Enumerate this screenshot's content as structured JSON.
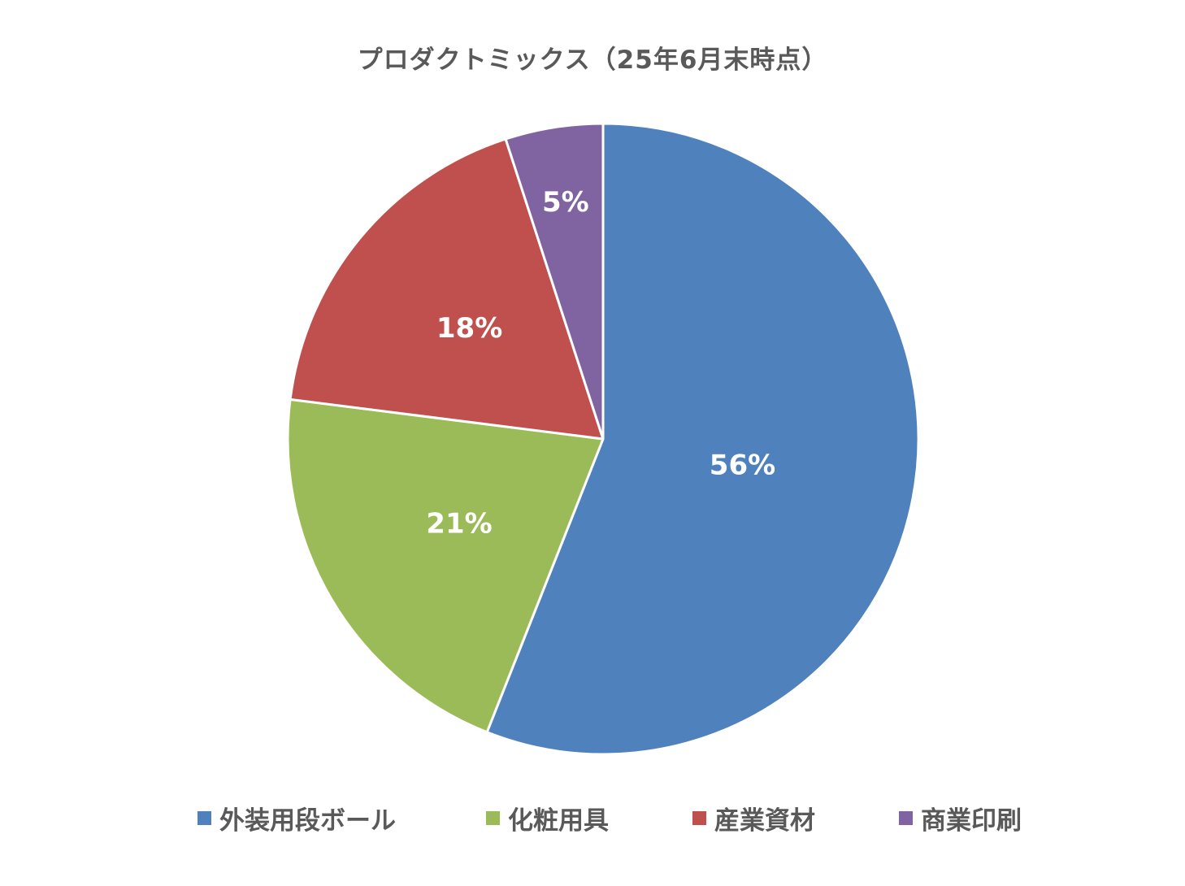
{
  "chart_data": {
    "type": "pie",
    "title": "プロダクトミックス（25年6月末時点）",
    "categories": [
      "外装用段ボール",
      "化粧用具",
      "産業資材",
      "商業印刷"
    ],
    "values": [
      56,
      21,
      18,
      5
    ],
    "data_labels": [
      "56%",
      "21%",
      "18%",
      "5%"
    ],
    "colors": [
      "#4F81BD",
      "#9BBB59",
      "#C0504D",
      "#8064A2"
    ],
    "legend_position": "bottom",
    "start_angle": "12 o'clock",
    "direction": "clockwise"
  }
}
